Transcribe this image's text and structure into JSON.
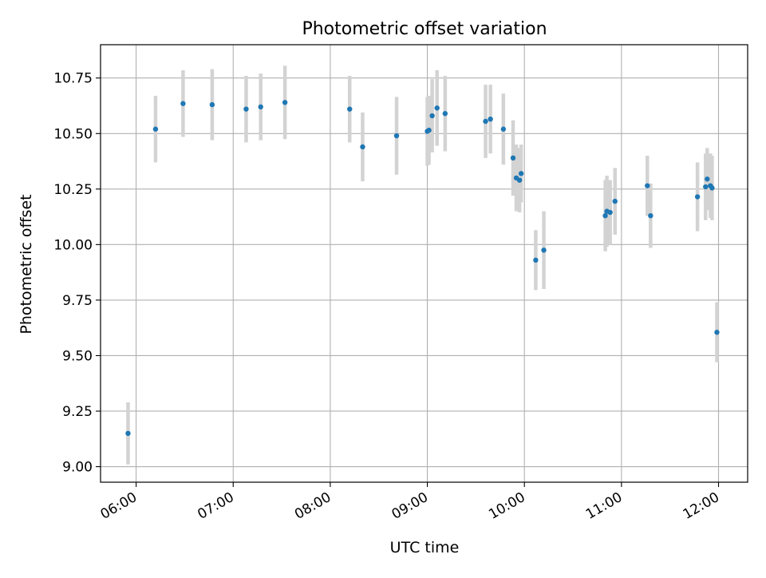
{
  "chart_data": {
    "type": "scatter",
    "title": "Photometric offset variation",
    "xlabel": "UTC time",
    "ylabel": "Photometric offset",
    "x_ticks": [
      "06:00",
      "07:00",
      "08:00",
      "09:00",
      "10:00",
      "11:00",
      "12:00"
    ],
    "y_ticks": [
      "9.00",
      "9.25",
      "9.50",
      "9.75",
      "10.00",
      "10.25",
      "10.50",
      "10.75"
    ],
    "xlim": [
      "05:38",
      "12:18"
    ],
    "ylim": [
      8.93,
      10.9
    ],
    "grid": true,
    "colors": {
      "points": "#1f77b4",
      "errorbars": "#d3d3d3",
      "grid": "#b0b0b0"
    },
    "points": [
      {
        "t": "05:55",
        "y": 9.15,
        "err": 0.14
      },
      {
        "t": "06:12",
        "y": 10.52,
        "err": 0.15
      },
      {
        "t": "06:29",
        "y": 10.635,
        "err": 0.15
      },
      {
        "t": "06:47",
        "y": 10.63,
        "err": 0.16
      },
      {
        "t": "07:08",
        "y": 10.61,
        "err": 0.15
      },
      {
        "t": "07:17",
        "y": 10.62,
        "err": 0.15
      },
      {
        "t": "07:32",
        "y": 10.64,
        "err": 0.165
      },
      {
        "t": "08:12",
        "y": 10.61,
        "err": 0.15
      },
      {
        "t": "08:20",
        "y": 10.44,
        "err": 0.155
      },
      {
        "t": "08:41",
        "y": 10.49,
        "err": 0.175
      },
      {
        "t": "09:00",
        "y": 10.51,
        "err": 0.155
      },
      {
        "t": "09:01",
        "y": 10.515,
        "err": 0.155
      },
      {
        "t": "09:03",
        "y": 10.58,
        "err": 0.165
      },
      {
        "t": "09:06",
        "y": 10.615,
        "err": 0.17
      },
      {
        "t": "09:11",
        "y": 10.59,
        "err": 0.17
      },
      {
        "t": "09:36",
        "y": 10.555,
        "err": 0.165
      },
      {
        "t": "09:39",
        "y": 10.565,
        "err": 0.155
      },
      {
        "t": "09:47",
        "y": 10.52,
        "err": 0.16
      },
      {
        "t": "09:53",
        "y": 10.39,
        "err": 0.17
      },
      {
        "t": "09:55",
        "y": 10.3,
        "err": 0.15
      },
      {
        "t": "09:57",
        "y": 10.29,
        "err": 0.145
      },
      {
        "t": "09:58",
        "y": 10.32,
        "err": 0.13
      },
      {
        "t": "10:07",
        "y": 9.93,
        "err": 0.135
      },
      {
        "t": "10:12",
        "y": 9.975,
        "err": 0.175
      },
      {
        "t": "10:50",
        "y": 10.13,
        "err": 0.16
      },
      {
        "t": "10:51",
        "y": 10.15,
        "err": 0.16
      },
      {
        "t": "10:53",
        "y": 10.145,
        "err": 0.145
      },
      {
        "t": "10:56",
        "y": 10.195,
        "err": 0.15
      },
      {
        "t": "11:16",
        "y": 10.265,
        "err": 0.135
      },
      {
        "t": "11:18",
        "y": 10.13,
        "err": 0.145
      },
      {
        "t": "11:47",
        "y": 10.215,
        "err": 0.155
      },
      {
        "t": "11:52",
        "y": 10.26,
        "err": 0.15
      },
      {
        "t": "11:53",
        "y": 10.295,
        "err": 0.14
      },
      {
        "t": "11:55",
        "y": 10.265,
        "err": 0.145
      },
      {
        "t": "11:56",
        "y": 10.255,
        "err": 0.145
      },
      {
        "t": "11:59",
        "y": 9.605,
        "err": 0.135
      }
    ]
  }
}
